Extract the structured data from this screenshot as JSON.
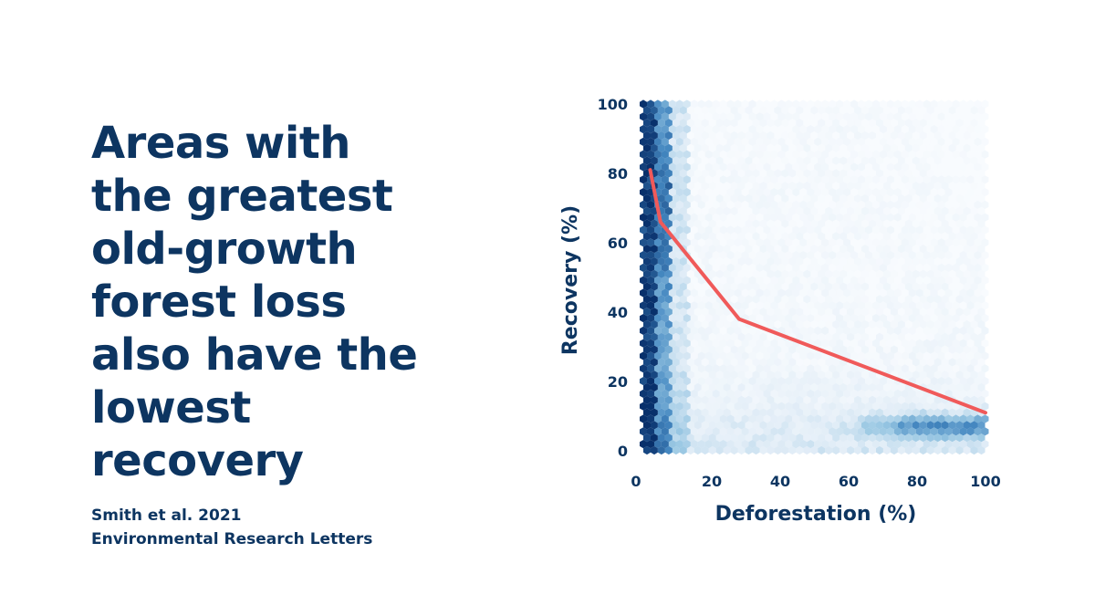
{
  "colors": {
    "text": "#0d3561",
    "trend_line": "#f05a5a",
    "hex_light": "#eef5fc",
    "hex_dark": "#08306b"
  },
  "headline": {
    "lines": [
      "Areas with",
      "the greatest",
      "old-growth",
      "forest loss",
      "also have the",
      "lowest",
      "recovery"
    ]
  },
  "citation": {
    "line1": "Smith et al. 2021",
    "line2": "Environmental Research Letters"
  },
  "chart_data": {
    "type": "heatmap",
    "subtype": "hexbin-density",
    "xlabel": "Deforestation (%)",
    "ylabel": "Recovery (%)",
    "xlim": [
      0,
      100
    ],
    "ylim": [
      0,
      100
    ],
    "xticks": [
      0,
      20,
      40,
      60,
      80,
      100
    ],
    "yticks": [
      0,
      20,
      40,
      60,
      80,
      100
    ],
    "grid": false,
    "trend_line": {
      "x": [
        2,
        5,
        28,
        100
      ],
      "y": [
        81,
        66,
        38,
        11
      ]
    },
    "density_regions": [
      {
        "x_range": [
          0,
          4
        ],
        "y_range": [
          0,
          100
        ],
        "level": "highest"
      },
      {
        "x_range": [
          4,
          12
        ],
        "y_range": [
          0,
          100
        ],
        "level": "high"
      },
      {
        "x_range": [
          60,
          100
        ],
        "y_range": [
          3,
          12
        ],
        "level": "high"
      },
      {
        "x_range": [
          12,
          100
        ],
        "y_range": [
          0,
          25
        ],
        "level": "moderate"
      },
      {
        "x_range": [
          12,
          100
        ],
        "y_range": [
          25,
          100
        ],
        "level": "low"
      }
    ]
  }
}
